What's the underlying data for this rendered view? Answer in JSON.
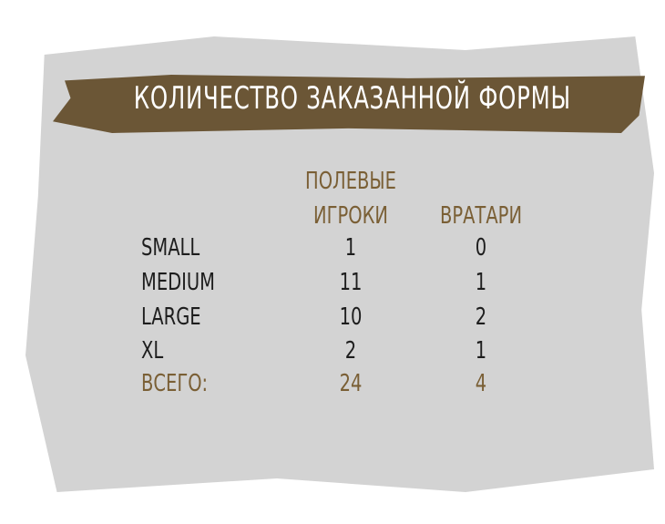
{
  "title": "КОЛИЧЕСТВО ЗАКАЗАННОЙ ФОРМЫ",
  "colors": {
    "banner": "#6b5636",
    "background": "#d3d3d3",
    "accent_text": "#7a5f35"
  },
  "table": {
    "headers": [
      [
        "ПОЛЕВЫЕ",
        "ИГРОКИ"
      ],
      [
        "ВРАТАРИ"
      ]
    ],
    "rows": [
      {
        "size": "SMALL",
        "field": "1",
        "goalies": "0"
      },
      {
        "size": "MEDIUM",
        "field": "11",
        "goalies": "1"
      },
      {
        "size": "LARGE",
        "field": "10",
        "goalies": "2"
      },
      {
        "size": "XL",
        "field": "2",
        "goalies": "1"
      }
    ],
    "total": {
      "label": "ВСЕГО:",
      "field": "24",
      "goalies": "4"
    }
  }
}
